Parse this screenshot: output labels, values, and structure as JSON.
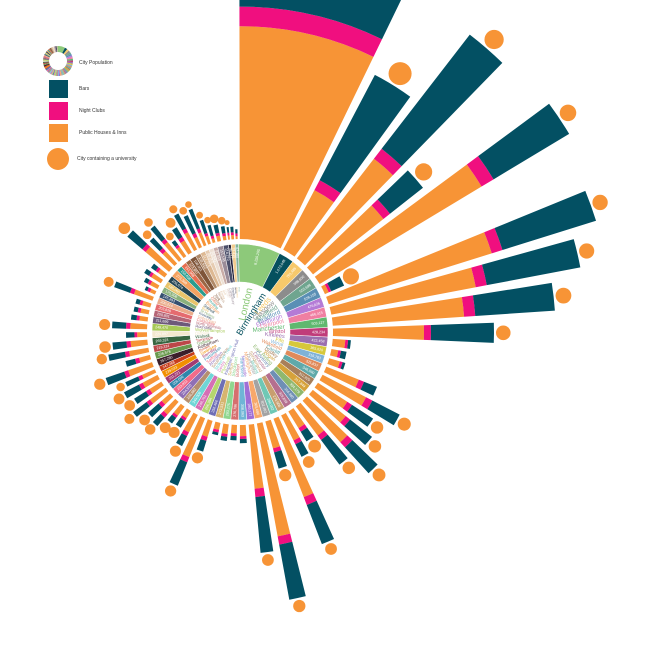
{
  "chart_data": {
    "type": "radial-stacked-bar",
    "legend": [
      {
        "key": "population",
        "label": "City Population",
        "icon": "mini-donut"
      },
      {
        "key": "bars",
        "label": "Bars",
        "color": "#035063"
      },
      {
        "key": "night_clubs",
        "label": "Night Clubs",
        "color": "#F00F7F"
      },
      {
        "key": "pubs",
        "label": "Public Houses & Inns",
        "color": "#F79436"
      },
      {
        "key": "university",
        "label": "City containing a university",
        "color": "#F79436"
      }
    ],
    "colors": {
      "bars": "#035063",
      "night_clubs": "#F00F7F",
      "pubs": "#F79436",
      "university": "#F79436",
      "ring": "#ffffff"
    },
    "series_order": [
      "pubs",
      "night_clubs",
      "bars"
    ],
    "cities": [
      {
        "name": "London",
        "population": "8,250,205",
        "color": "#8DC97A",
        "pubs": 152,
        "night_clubs": 14,
        "bars": 41,
        "university": true
      },
      {
        "name": "Birmingham",
        "population": "1,073,045",
        "color": "#05505E",
        "pubs": 48,
        "night_clubs": 8,
        "bars": 85,
        "university": true
      },
      {
        "name": "Leeds",
        "population": "751,485",
        "color": "#F7C96B",
        "pubs": 90,
        "night_clubs": 9,
        "bars": 103,
        "university": true
      },
      {
        "name": "Glasgow",
        "population": "598,830",
        "color": "#8C8C8C",
        "pubs": 64,
        "night_clubs": 6,
        "bars": 30,
        "university": true
      },
      {
        "name": "Sheffield",
        "population": "552,698",
        "color": "#6FA58F",
        "pubs": 135,
        "night_clubs": 10,
        "bars": 63,
        "university": true
      },
      {
        "name": "Bradford",
        "population": "528,155",
        "color": "#5A8FB5",
        "pubs": 3,
        "night_clubs": 2,
        "bars": 10,
        "university": true
      },
      {
        "name": "Edinburgh",
        "population": "476,626",
        "color": "#B57BD6",
        "pubs": 122,
        "night_clubs": 8,
        "bars": 70,
        "university": true
      },
      {
        "name": "Liverpool",
        "population": "466,415",
        "color": "#F07FA2",
        "pubs": 105,
        "night_clubs": 8,
        "bars": 68,
        "university": true
      },
      {
        "name": "Manchester",
        "population": "503,127",
        "color": "#5FB86F",
        "pubs": 94,
        "night_clubs": 8,
        "bars": 57,
        "university": true
      },
      {
        "name": "Bristol",
        "population": "428,234",
        "color": "#C03C7A",
        "pubs": 65,
        "night_clubs": 5,
        "bars": 45,
        "university": true
      },
      {
        "name": "Kirklees",
        "population": "422,458",
        "color": "#9B6FAF",
        "pubs": 9,
        "night_clubs": 2,
        "bars": 2,
        "university": false
      },
      {
        "name": "Fife",
        "population": "365,020",
        "color": "#D6C83A",
        "pubs": 5,
        "night_clubs": 2,
        "bars": 4,
        "university": false
      },
      {
        "name": "Wirral",
        "population": "319,783",
        "color": "#7FB2D6",
        "pubs": 8,
        "night_clubs": 2,
        "bars": 2,
        "university": false
      },
      {
        "name": "Wakefield",
        "population": "325,837",
        "color": "#E08A5A",
        "pubs": 25,
        "night_clubs": 4,
        "bars": 10,
        "university": false
      },
      {
        "name": "Cardiff",
        "population": "346,090",
        "color": "#5FA9A9",
        "pubs": 35,
        "night_clubs": 5,
        "bars": 22,
        "university": true
      },
      {
        "name": "Dudley",
        "population": "312,925",
        "color": "#A87F5A",
        "pubs": 25,
        "night_clubs": 4,
        "bars": 18,
        "university": true
      },
      {
        "name": "Wigan",
        "population": "317,849",
        "color": "#D6A23A",
        "pubs": 30,
        "night_clubs": 4,
        "bars": 20,
        "university": true
      },
      {
        "name": "East Riding",
        "population": "334,179",
        "color": "#8FB86F",
        "pubs": 40,
        "night_clubs": 5,
        "bars": 25,
        "university": true
      },
      {
        "name": "Coventry",
        "population": "316,960",
        "color": "#6F8FB5",
        "pubs": 26,
        "night_clubs": 4,
        "bars": 22,
        "university": true
      },
      {
        "name": "Leicester",
        "population": "329,839",
        "color": "#B56F8F",
        "pubs": 14,
        "night_clubs": 3,
        "bars": 8,
        "university": true
      },
      {
        "name": "Sunderland",
        "population": "275,506",
        "color": "#C89F6F",
        "pubs": 20,
        "night_clubs": 3,
        "bars": 10,
        "university": true
      },
      {
        "name": "Belfast",
        "population": "280,962",
        "color": "#6FC8B5",
        "pubs": 60,
        "night_clubs": 6,
        "bars": 30,
        "university": true
      },
      {
        "name": "Doncaster",
        "population": "302,402",
        "color": "#A3A3A3",
        "pubs": 20,
        "night_clubs": 3,
        "bars": 12,
        "university": true
      },
      {
        "name": "Nottingham",
        "population": "305,680",
        "color": "#F7A86B",
        "pubs": 82,
        "night_clubs": 6,
        "bars": 40,
        "university": true
      },
      {
        "name": "Newcastle",
        "population": "280,177",
        "color": "#9F6FD6",
        "pubs": 46,
        "night_clubs": 6,
        "bars": 40,
        "university": true
      },
      {
        "name": "Sandwell",
        "population": "308,063",
        "color": "#6FB5D6",
        "pubs": 8,
        "night_clubs": 2,
        "bars": 3,
        "university": false
      },
      {
        "name": "Bolton",
        "population": "276,786",
        "color": "#D66F6F",
        "pubs": 6,
        "night_clubs": 2,
        "bars": 3,
        "university": false
      },
      {
        "name": "Stockport",
        "population": "283,275",
        "color": "#8FD68F",
        "pubs": 7,
        "night_clubs": 2,
        "bars": 3,
        "university": false
      },
      {
        "name": "Sefton",
        "population": "273,531",
        "color": "#D6B56F",
        "pubs": 5,
        "night_clubs": 2,
        "bars": 2,
        "university": false
      },
      {
        "name": "Kingston upon Hull",
        "population": "256,406",
        "color": "#6F6FB5",
        "pubs": 12,
        "night_clubs": 3,
        "bars": 8,
        "university": true
      },
      {
        "name": "Plymouth",
        "population": "256,384",
        "color": "#B5D66F",
        "pubs": 30,
        "night_clubs": 4,
        "bars": 18,
        "university": true
      },
      {
        "name": "Derby",
        "population": "248,752",
        "color": "#D66FB5",
        "pubs": 14,
        "night_clubs": 3,
        "bars": 8,
        "university": true
      },
      {
        "name": "Stoke-on-Trent",
        "population": "249,008",
        "color": "#6FD6D6",
        "pubs": 6,
        "night_clubs": 2,
        "bars": 6,
        "university": true
      },
      {
        "name": "Southampton",
        "population": "236,882",
        "color": "#B58F6F",
        "pubs": 8,
        "night_clubs": 2,
        "bars": 5,
        "university": true
      },
      {
        "name": "Aberdeen",
        "population": "224,970",
        "color": "#8F6FB5",
        "pubs": 12,
        "night_clubs": 3,
        "bars": 8,
        "university": true
      },
      {
        "name": "Salford",
        "population": "233,933",
        "color": "#F26B8A",
        "pubs": 8,
        "night_clubs": 3,
        "bars": 10,
        "university": true
      },
      {
        "name": "Portsmouth",
        "population": "205,056",
        "color": "#2E86AB",
        "pubs": 14,
        "night_clubs": 3,
        "bars": 12,
        "university": true
      },
      {
        "name": "Barnsley",
        "population": "231,221",
        "color": "#A23B72",
        "pubs": 10,
        "night_clubs": 3,
        "bars": 10,
        "university": true
      },
      {
        "name": "Swansea",
        "population": "239,023",
        "color": "#F18F01",
        "pubs": 12,
        "night_clubs": 3,
        "bars": 12,
        "university": true
      },
      {
        "name": "Dundee",
        "population": "147,268",
        "color": "#C73E1D",
        "pubs": 10,
        "night_clubs": 3,
        "bars": 10,
        "university": true
      },
      {
        "name": "Rotherham",
        "population": "257,280",
        "color": "#3B1F2B",
        "pubs": 18,
        "night_clubs": 3,
        "bars": 14,
        "university": true
      },
      {
        "name": "Trafford",
        "population": "226,578",
        "color": "#6A994E",
        "pubs": 8,
        "night_clubs": 3,
        "bars": 7,
        "university": false
      },
      {
        "name": "Tameside",
        "population": "219,324",
        "color": "#BC4749",
        "pubs": 14,
        "night_clubs": 3,
        "bars": 12,
        "university": true
      },
      {
        "name": "Walsall",
        "population": "269,323",
        "color": "#386641",
        "pubs": 12,
        "night_clubs": 3,
        "bars": 10,
        "university": true
      },
      {
        "name": "Oldham",
        "population": "224,897",
        "color": "#F2E8CF",
        "pubs": 7,
        "night_clubs": 2,
        "bars": 6,
        "university": false
      },
      {
        "name": "Wolverhampton",
        "population": "249,470",
        "color": "#A7C957",
        "pubs": 12,
        "night_clubs": 3,
        "bars": 10,
        "university": true
      },
      {
        "name": "Rochdale",
        "population": "211,699",
        "color": "#6D597A",
        "pubs": 6,
        "night_clubs": 2,
        "bars": 4,
        "university": false
      },
      {
        "name": "North Tyneside",
        "population": "200,801",
        "color": "#B56576",
        "pubs": 6,
        "night_clubs": 2,
        "bars": 3,
        "university": false
      },
      {
        "name": "Calderdale",
        "population": "203,826",
        "color": "#E56B6F",
        "pubs": 6,
        "night_clubs": 2,
        "bars": 3,
        "university": false
      },
      {
        "name": "Gateshead",
        "population": "200,214",
        "color": "#EAAC8B",
        "pubs": 14,
        "night_clubs": 3,
        "bars": 12,
        "university": true
      },
      {
        "name": "Knowsley",
        "population": "145,893",
        "color": "#355070",
        "pubs": 4,
        "night_clubs": 2,
        "bars": 2,
        "university": false
      },
      {
        "name": "St Helens",
        "population": "175,308",
        "color": "#8AB17D",
        "pubs": 6,
        "night_clubs": 2,
        "bars": 3,
        "university": false
      },
      {
        "name": "Bury",
        "population": "185,060",
        "color": "#E9C46A",
        "pubs": 8,
        "night_clubs": 2,
        "bars": 4,
        "university": false
      },
      {
        "name": "Solihull",
        "population": "206,674",
        "color": "#264653",
        "pubs": 6,
        "night_clubs": 2,
        "bars": 4,
        "university": false
      },
      {
        "name": "Brighton",
        "population": "273,369",
        "color": "#F4A261",
        "pubs": 22,
        "night_clubs": 3,
        "bars": 14,
        "university": true
      },
      {
        "name": "Reading",
        "population": "155,698",
        "color": "#2A9D8F",
        "pubs": 12,
        "night_clubs": 3,
        "bars": 10,
        "university": true
      },
      {
        "name": "Oxford",
        "population": "151,906",
        "color": "#E76F51",
        "pubs": 16,
        "night_clubs": 3,
        "bars": 12,
        "university": true
      },
      {
        "name": "Cambridge",
        "population": "123,867",
        "color": "#9C6644",
        "pubs": 8,
        "night_clubs": 2,
        "bars": 4,
        "university": true
      },
      {
        "name": "York",
        "population": "198,051",
        "color": "#7F5539",
        "pubs": 10,
        "night_clubs": 3,
        "bars": 8,
        "university": true
      },
      {
        "name": "Norwich",
        "population": "132,512",
        "color": "#B08968",
        "pubs": 14,
        "night_clubs": 3,
        "bars": 12,
        "university": true
      },
      {
        "name": "Exeter",
        "population": "117,773",
        "color": "#DDB892",
        "pubs": 8,
        "night_clubs": 3,
        "bars": 14,
        "university": true
      },
      {
        "name": "Bath",
        "population": "88,859",
        "color": "#E6CCB2",
        "pubs": 10,
        "night_clubs": 3,
        "bars": 15,
        "university": true
      },
      {
        "name": "Lincoln",
        "population": "93,541",
        "color": "#EDE0D4",
        "pubs": 6,
        "night_clubs": 2,
        "bars": 10,
        "university": true
      },
      {
        "name": "Durham",
        "population": "87,656",
        "color": "#C9ADA7",
        "pubs": 3,
        "night_clubs": 2,
        "bars": 8,
        "university": true
      },
      {
        "name": "Canterbury",
        "population": "151,145",
        "color": "#9A8C98",
        "pubs": 4,
        "night_clubs": 2,
        "bars": 6,
        "university": true
      },
      {
        "name": "Chester",
        "population": "118,210",
        "color": "#4A4E69",
        "pubs": 3,
        "night_clubs": 2,
        "bars": 5,
        "university": true
      },
      {
        "name": "Stirling",
        "population": "36,142",
        "color": "#22223B",
        "pubs": 3,
        "night_clubs": 2,
        "bars": 4,
        "university": true
      },
      {
        "name": "Inverness",
        "population": "79,415",
        "color": "#F2CC8F",
        "pubs": 3,
        "night_clubs": 2,
        "bars": 4,
        "university": false
      },
      {
        "name": "Perth",
        "population": "47,180",
        "color": "#81B29A",
        "pubs": 2,
        "night_clubs": 2,
        "bars": 3,
        "university": false
      }
    ]
  }
}
